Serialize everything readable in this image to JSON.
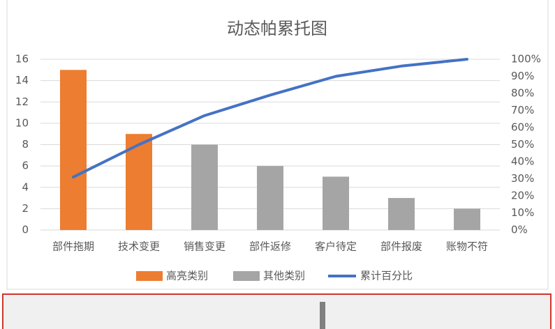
{
  "chart_data": {
    "type": "bar",
    "title": "动态帕累托图",
    "categories": [
      "部件拖期",
      "技术变更",
      "销售变更",
      "部件返修",
      "客户待定",
      "部件报废",
      "账物不符"
    ],
    "series": [
      {
        "name": "高亮类别",
        "color": "#ed7d31",
        "values": [
          15,
          9,
          null,
          null,
          null,
          null,
          null
        ]
      },
      {
        "name": "其他类别",
        "color": "#a5a5a5",
        "values": [
          null,
          null,
          8,
          6,
          5,
          3,
          2
        ]
      },
      {
        "name": "累计百分比",
        "color": "#4472c4",
        "type": "line",
        "axis": "y2",
        "values": [
          31,
          50,
          67,
          79,
          90,
          96,
          100
        ]
      }
    ],
    "ylim": [
      0,
      16
    ],
    "yticks": [
      0,
      2,
      4,
      6,
      8,
      10,
      12,
      14,
      16
    ],
    "y2lim": [
      0,
      100
    ],
    "y2ticks": [
      {
        "value": 0,
        "label": "0%"
      },
      {
        "value": 10,
        "label": "10%"
      },
      {
        "value": 20,
        "label": "20%"
      },
      {
        "value": 30,
        "label": "30%"
      },
      {
        "value": 40,
        "label": "40%"
      },
      {
        "value": 50,
        "label": "50%"
      },
      {
        "value": 60,
        "label": "60%"
      },
      {
        "value": 70,
        "label": "70%"
      },
      {
        "value": 80,
        "label": "80%"
      },
      {
        "value": 90,
        "label": "90%"
      },
      {
        "value": 100,
        "label": "100%"
      }
    ],
    "grid": true
  }
}
